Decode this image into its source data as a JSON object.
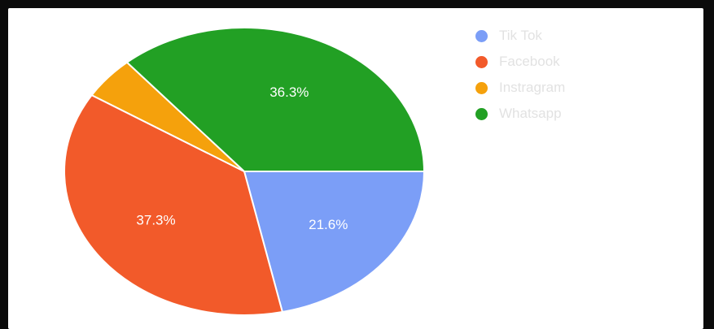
{
  "chart_data": {
    "type": "pie",
    "categories": [
      "Tik Tok",
      "Facebook",
      "Instragram",
      "Whatsapp"
    ],
    "values": [
      21.6,
      37.3,
      4.8,
      36.3
    ],
    "labels": [
      "21.6%",
      "37.3%",
      "",
      "36.3%"
    ],
    "colors": [
      "#7b9ef7",
      "#f25a2a",
      "#f5a10c",
      "#22a024"
    ],
    "legend_position": "top-right",
    "start_angle_deg": 90,
    "direction": "clockwise"
  }
}
